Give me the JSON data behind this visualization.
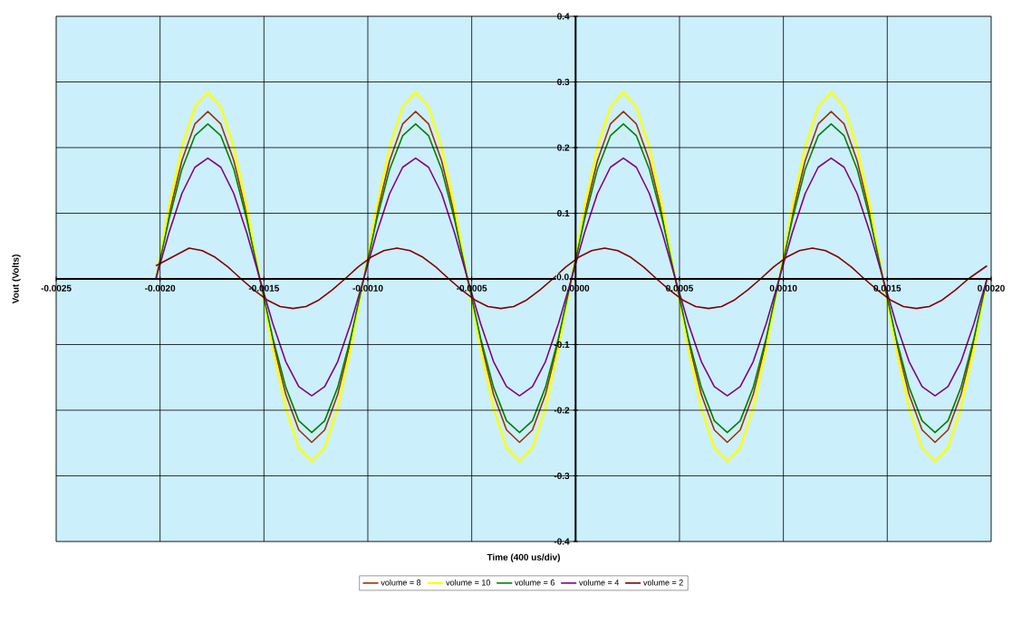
{
  "chart_data": {
    "type": "line",
    "xlabel": "Time (400 us/div)",
    "ylabel": "Vout (Volts)",
    "xlim": [
      -0.0025,
      0.002
    ],
    "ylim": [
      -0.4,
      0.4
    ],
    "xticks": [
      {
        "value": -0.0025,
        "label": "-0.0025"
      },
      {
        "value": -0.002,
        "label": "-0.0020"
      },
      {
        "value": -0.0015,
        "label": "-0.0015"
      },
      {
        "value": -0.001,
        "label": "-0.0010"
      },
      {
        "value": -0.0005,
        "label": "-0.0005"
      },
      {
        "value": 0,
        "label": "0.0000"
      },
      {
        "value": 0.0005,
        "label": "0.0005"
      },
      {
        "value": 0.001,
        "label": "0.0010"
      },
      {
        "value": 0.0015,
        "label": "0.0015"
      },
      {
        "value": 0.002,
        "label": "0.0020"
      }
    ],
    "yticks": [
      -0.4,
      -0.3,
      -0.2,
      -0.1,
      {
        "value": 0,
        "label": "0.0"
      },
      0.1,
      0.2,
      0.3,
      0.4
    ],
    "grid": true,
    "legend": "bottom",
    "marker": "none",
    "line_style": "solid",
    "x": [
      -0.00202,
      -0.0019575,
      -0.001895,
      -0.0018325,
      -0.00177,
      -0.0017075,
      -0.001645,
      -0.0015825,
      -0.00152,
      -0.0014575,
      -0.001395,
      -0.0013325,
      -0.00127,
      -0.0012075,
      -0.001145,
      -0.0010825,
      -0.00102,
      -0.0009575,
      -0.000895,
      -0.0008325,
      -0.00077,
      -0.0007075,
      -0.000645,
      -0.0005825,
      -0.00052,
      -0.0004575,
      -0.000395,
      -0.0003325,
      -0.00027,
      -0.0002075,
      -0.000145,
      -8.25e-05,
      -2e-05,
      4.25e-05,
      0.000105,
      0.0001675,
      0.00023,
      0.0002925,
      0.000355,
      0.0004175,
      0.00048,
      0.0005425,
      0.000605,
      0.0006675,
      0.00073,
      0.0007925,
      0.000855,
      0.0009175,
      0.00098,
      0.0010425,
      0.001105,
      0.0011675,
      0.00123,
      0.0012925,
      0.001355,
      0.0014175,
      0.00148,
      0.0015425,
      0.001605,
      0.0016675,
      0.00173,
      0.0017925,
      0.001855,
      0.0019175,
      0.00198
    ],
    "series": [
      {
        "name": "volume = 8",
        "color": "#993300",
        "values": [
          0,
          0.098,
          0.18,
          0.236,
          0.255,
          0.236,
          0.18,
          0.098,
          0,
          -0.095,
          -0.176,
          -0.23,
          -0.249,
          -0.23,
          -0.176,
          -0.095,
          0,
          0.098,
          0.18,
          0.236,
          0.255,
          0.236,
          0.18,
          0.098,
          0,
          -0.095,
          -0.176,
          -0.23,
          -0.249,
          -0.23,
          -0.176,
          -0.095,
          0,
          0.098,
          0.18,
          0.236,
          0.255,
          0.236,
          0.18,
          0.098,
          0,
          -0.095,
          -0.176,
          -0.23,
          -0.249,
          -0.23,
          -0.176,
          -0.095,
          0,
          0.098,
          0.18,
          0.236,
          0.255,
          0.236,
          0.18,
          0.098,
          0,
          -0.095,
          -0.176,
          -0.23,
          -0.249,
          -0.23,
          -0.176,
          -0.095,
          0
        ]
      },
      {
        "name": "volume = 10",
        "color": "#ffff00",
        "values": [
          0,
          0.109,
          0.201,
          0.262,
          0.284,
          0.262,
          0.201,
          0.109,
          0,
          -0.106,
          -0.197,
          -0.257,
          -0.278,
          -0.257,
          -0.197,
          -0.106,
          0,
          0.109,
          0.201,
          0.262,
          0.284,
          0.262,
          0.201,
          0.109,
          0,
          -0.106,
          -0.197,
          -0.257,
          -0.278,
          -0.257,
          -0.197,
          -0.106,
          0,
          0.109,
          0.201,
          0.262,
          0.284,
          0.262,
          0.201,
          0.109,
          0,
          -0.106,
          -0.197,
          -0.257,
          -0.278,
          -0.257,
          -0.197,
          -0.106,
          0,
          0.109,
          0.201,
          0.262,
          0.284,
          0.262,
          0.201,
          0.109,
          0,
          -0.106,
          -0.197,
          -0.257,
          -0.278,
          -0.257,
          -0.197,
          -0.106,
          0
        ]
      },
      {
        "name": "volume = 6",
        "color": "#008000",
        "values": [
          0,
          0.09,
          0.167,
          0.218,
          0.236,
          0.218,
          0.167,
          0.09,
          0,
          -0.09,
          -0.165,
          -0.216,
          -0.234,
          -0.216,
          -0.165,
          -0.09,
          0,
          0.09,
          0.167,
          0.218,
          0.236,
          0.218,
          0.167,
          0.09,
          0,
          -0.09,
          -0.165,
          -0.216,
          -0.234,
          -0.216,
          -0.165,
          -0.09,
          0,
          0.09,
          0.167,
          0.218,
          0.236,
          0.218,
          0.167,
          0.09,
          0,
          -0.09,
          -0.165,
          -0.216,
          -0.234,
          -0.216,
          -0.165,
          -0.09,
          0,
          0.09,
          0.167,
          0.218,
          0.236,
          0.218,
          0.167,
          0.09,
          0,
          -0.09,
          -0.165,
          -0.216,
          -0.234,
          -0.216,
          -0.165,
          -0.09,
          0
        ]
      },
      {
        "name": "volume = 4",
        "color": "#800080",
        "values": [
          0,
          0.07,
          0.13,
          0.17,
          0.184,
          0.17,
          0.13,
          0.07,
          0,
          -0.068,
          -0.126,
          -0.164,
          -0.178,
          -0.164,
          -0.126,
          -0.068,
          0,
          0.07,
          0.13,
          0.17,
          0.184,
          0.17,
          0.13,
          0.07,
          0,
          -0.068,
          -0.126,
          -0.164,
          -0.178,
          -0.164,
          -0.126,
          -0.068,
          0,
          0.07,
          0.13,
          0.17,
          0.184,
          0.17,
          0.13,
          0.07,
          0,
          -0.068,
          -0.126,
          -0.164,
          -0.178,
          -0.164,
          -0.126,
          -0.068,
          0,
          0.07,
          0.13,
          0.17,
          0.184,
          0.17,
          0.13,
          0.07,
          0,
          -0.068,
          -0.126,
          -0.164,
          -0.178,
          -0.164,
          -0.126,
          -0.068,
          0
        ]
      },
      {
        "name": "volume = 2",
        "color": "#800000",
        "x": [
          -0.00202,
          -0.00186,
          -0.0017975,
          -0.001735,
          -0.0016725,
          -0.00161,
          -0.0015475,
          -0.001485,
          -0.0014225,
          -0.00136,
          -0.0012975,
          -0.001235,
          -0.0011725,
          -0.00111,
          -0.0010475,
          -0.000985,
          -0.0009225,
          -0.00086,
          -0.0007975,
          -0.000735,
          -0.0006725,
          -0.00061,
          -0.0005475,
          -0.000485,
          -0.0004225,
          -0.00036,
          -0.0002975,
          -0.000235,
          -0.0001725,
          -0.00011,
          -4.75e-05,
          1.5e-05,
          7.75e-05,
          0.00014,
          0.0002025,
          0.000265,
          0.0003275,
          0.00039,
          0.0004525,
          0.000515,
          0.0005775,
          0.00064,
          0.0007025,
          0.000765,
          0.0008275,
          0.00089,
          0.0009525,
          0.001015,
          0.0010775,
          0.00114,
          0.0012025,
          0.001265,
          0.0013275,
          0.00139,
          0.0014525,
          0.001515,
          0.0015775,
          0.00164,
          0.0017025,
          0.001765,
          0.0018275,
          0.00189,
          0.00198
        ],
        "values": [
          0.02,
          0.047,
          0.043,
          0.033,
          0.018,
          0,
          -0.017,
          -0.032,
          -0.042,
          -0.045,
          -0.042,
          -0.032,
          -0.017,
          0,
          0.018,
          0.033,
          0.043,
          0.047,
          0.043,
          0.033,
          0.018,
          0,
          -0.017,
          -0.032,
          -0.042,
          -0.045,
          -0.042,
          -0.032,
          -0.017,
          0,
          0.018,
          0.033,
          0.043,
          0.047,
          0.043,
          0.033,
          0.018,
          0,
          -0.017,
          -0.032,
          -0.042,
          -0.045,
          -0.042,
          -0.032,
          -0.017,
          0,
          0.018,
          0.033,
          0.043,
          0.047,
          0.043,
          0.033,
          0.018,
          0,
          -0.017,
          -0.032,
          -0.042,
          -0.045,
          -0.042,
          -0.032,
          -0.017,
          0,
          0.02
        ]
      }
    ]
  }
}
